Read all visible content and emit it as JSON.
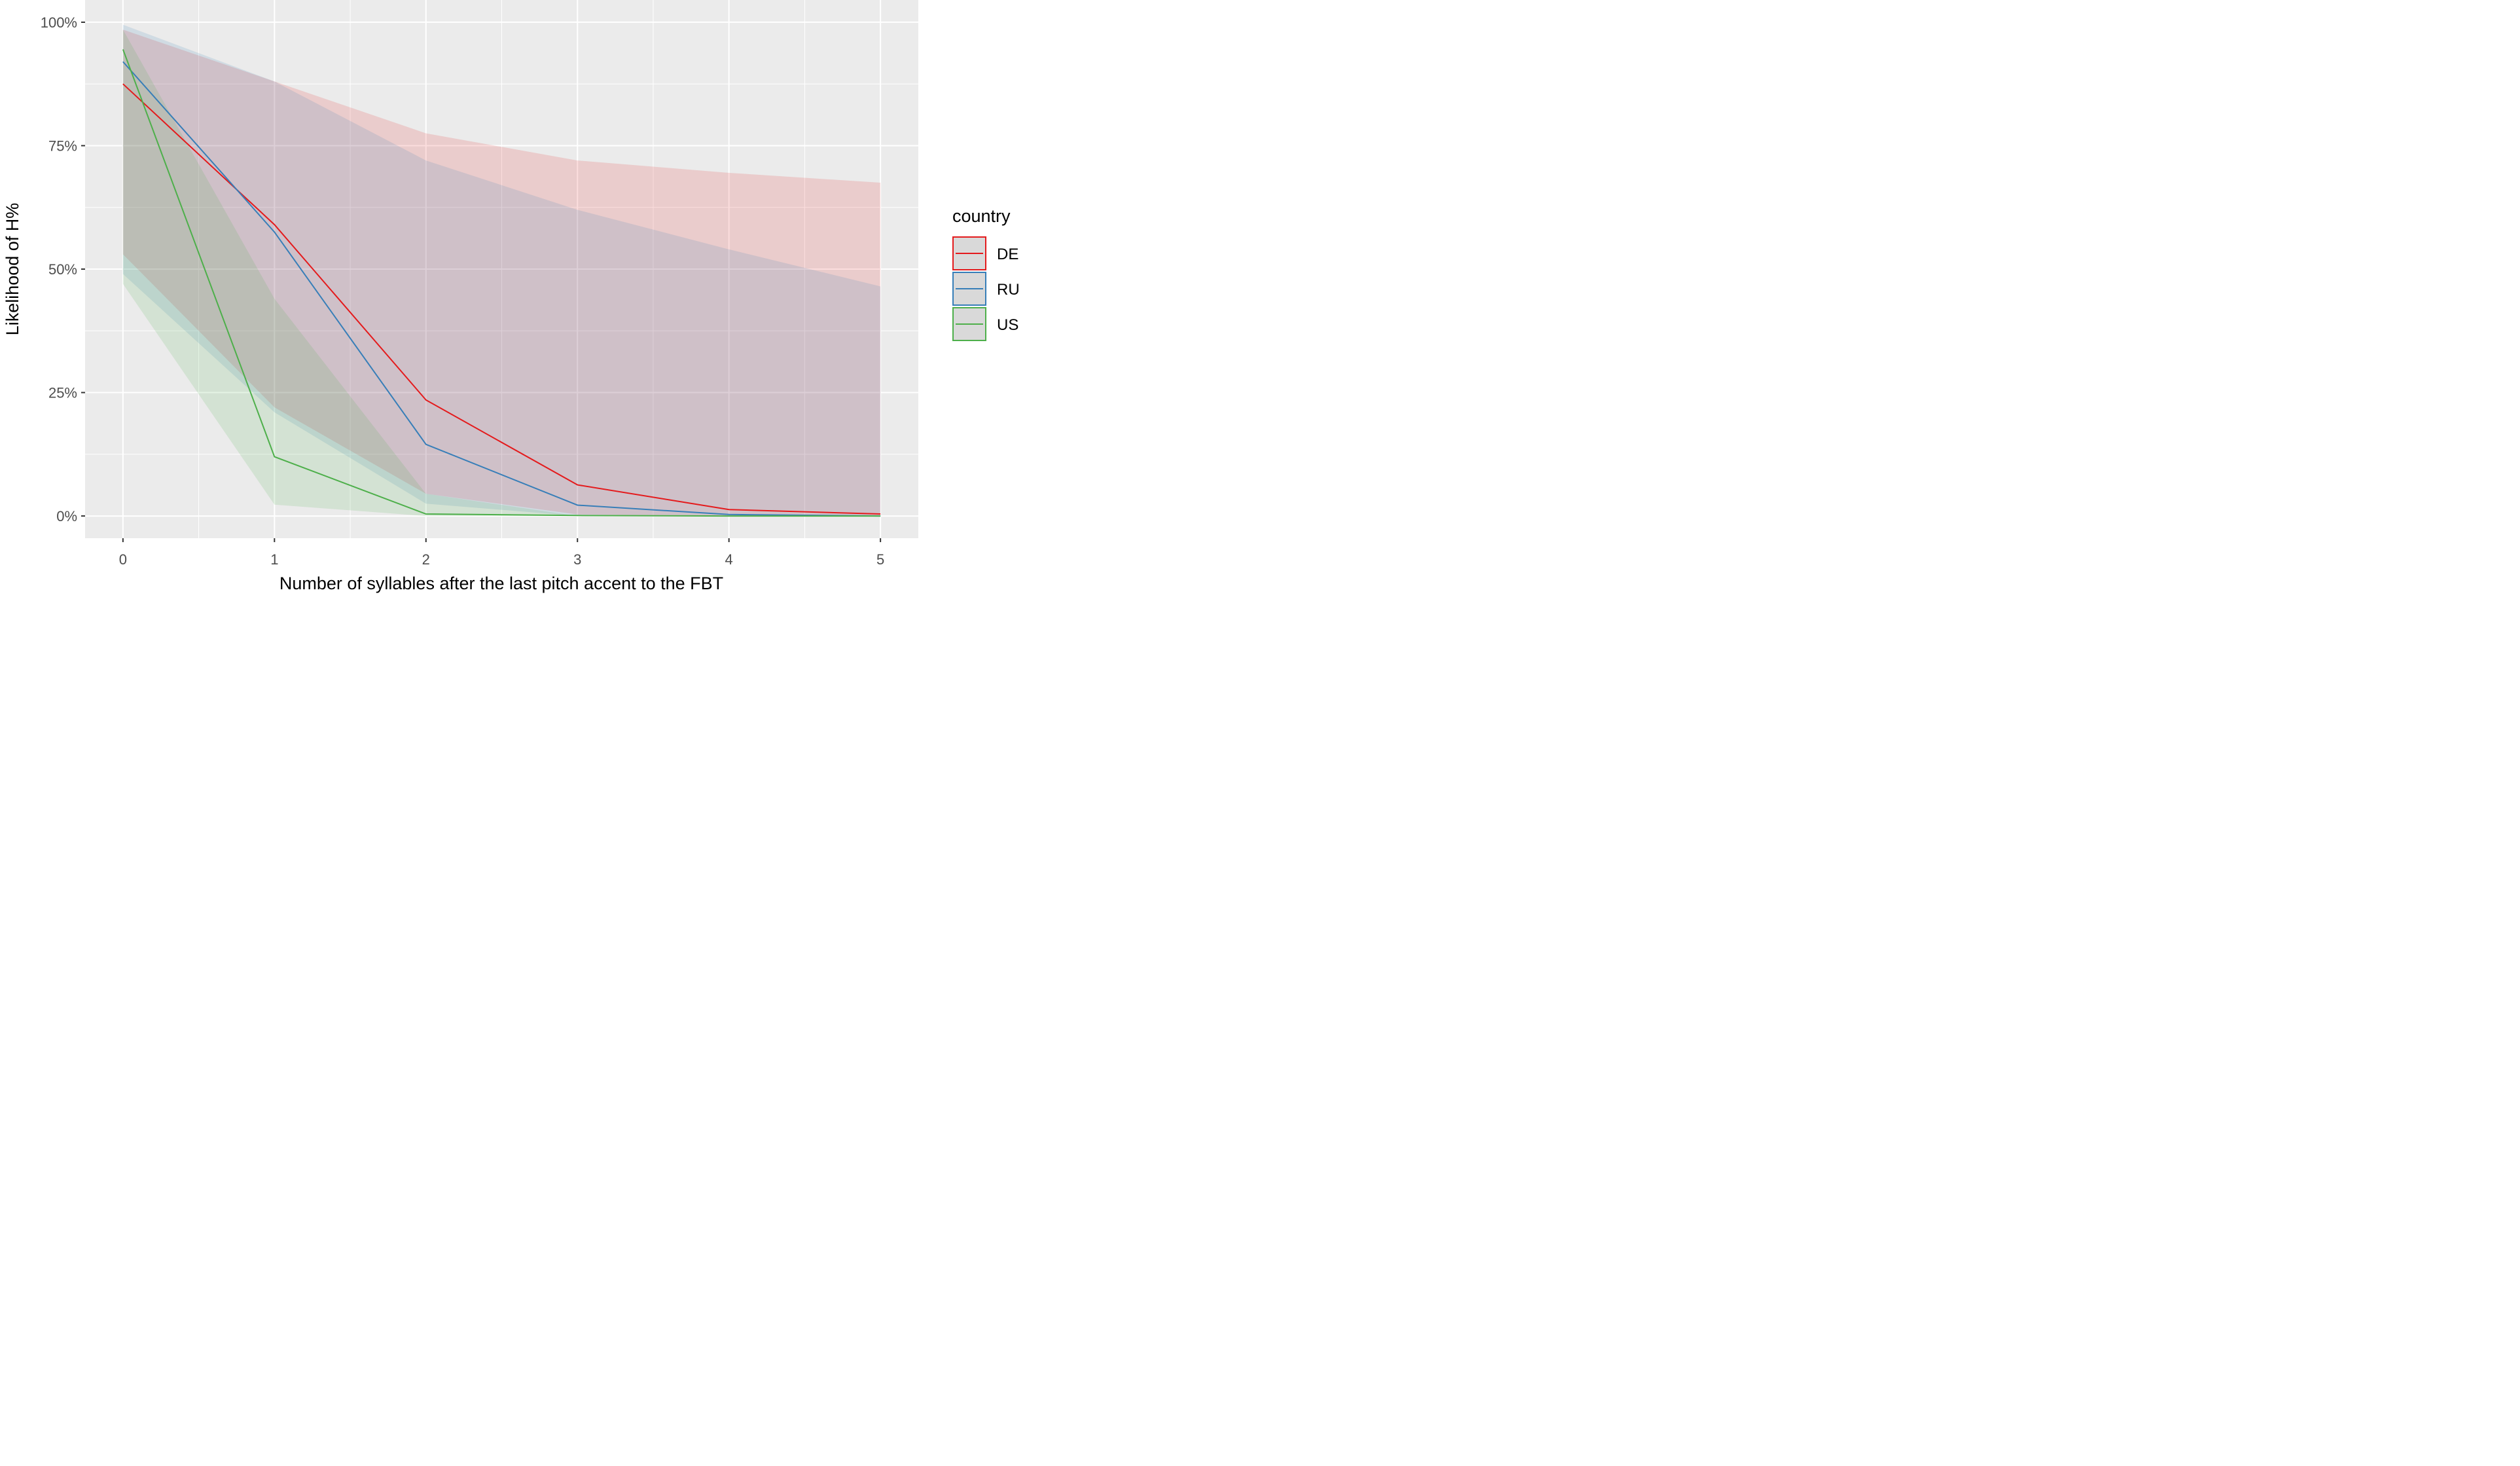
{
  "chart_data": {
    "type": "line",
    "xlabel": "Number of syllables after the last pitch accent to the FBT",
    "ylabel": "Likelihood of H%",
    "x": [
      0,
      1,
      2,
      3,
      4,
      5
    ],
    "x_ticks": [
      0,
      1,
      2,
      3,
      4,
      5
    ],
    "x_tick_labels": [
      "0",
      "1",
      "2",
      "3",
      "4",
      "5"
    ],
    "xlim": [
      -0.25,
      5.25
    ],
    "y_ticks": [
      0,
      0.25,
      0.5,
      0.75,
      1.0
    ],
    "y_tick_labels": [
      "0%",
      "25%",
      "50%",
      "75%",
      "100%"
    ],
    "ylim": [
      -0.045,
      1.045
    ],
    "grid": true,
    "legend": {
      "title": "country",
      "position": "right"
    },
    "series": [
      {
        "name": "DE",
        "color": "#e41a1c",
        "values": [
          0.875,
          0.59,
          0.235,
          0.063,
          0.013,
          0.004
        ],
        "lower": [
          0.53,
          0.22,
          0.045,
          0.003,
          0.0,
          0.0
        ],
        "upper": [
          0.985,
          0.88,
          0.775,
          0.72,
          0.695,
          0.675
        ]
      },
      {
        "name": "RU",
        "color": "#377eb8",
        "values": [
          0.92,
          0.575,
          0.145,
          0.022,
          0.003,
          0.0
        ],
        "lower": [
          0.49,
          0.21,
          0.025,
          0.0,
          0.0,
          0.0
        ],
        "upper": [
          0.995,
          0.88,
          0.72,
          0.62,
          0.54,
          0.465
        ]
      },
      {
        "name": "US",
        "color": "#4daf4a",
        "values": [
          0.945,
          0.12,
          0.004,
          0.001,
          0.0,
          0.0
        ],
        "lower": [
          0.47,
          0.023,
          0.0,
          0.0,
          0.0,
          0.0
        ],
        "upper": [
          0.985,
          0.44,
          0.045,
          0.0,
          0.0,
          0.0
        ]
      }
    ]
  }
}
